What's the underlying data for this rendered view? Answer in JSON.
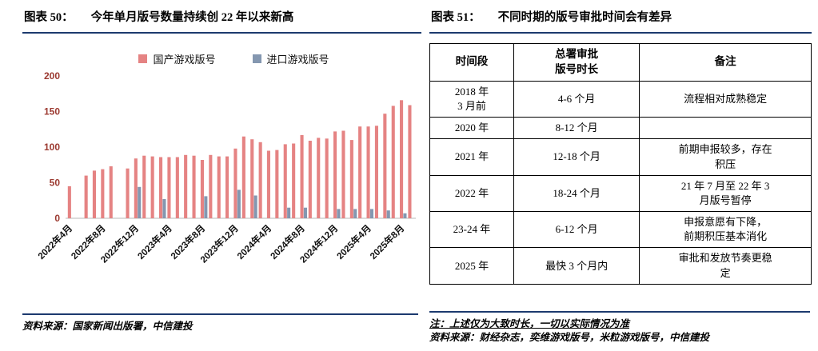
{
  "theme": {
    "rule_color": "#1c3a6e",
    "domestic_bar_color": "#e58383",
    "imported_bar_color": "#8497b0",
    "y_axis_label_color": "#9c3a31",
    "table_border_color": "#000000"
  },
  "left_panel": {
    "title_label": "图表 50：",
    "source": "资料来源：国家新闻出版署，中信建投"
  },
  "right_panel": {
    "title_label": "图表 51：",
    "note": "注：上述仅为大致时长，一切以实际情况为准",
    "source": "资料来源：财经杂志，奕维游戏版号，米粒游戏版号，中信建投"
  },
  "chart_data": [
    {
      "type": "bar",
      "title": "今年单月版号数量持续创 22 年以来新高",
      "x": [
        "2022年4月",
        "2022年5月",
        "2022年6月",
        "2022年7月",
        "2022年8月",
        "2022年9月",
        "2022年10月",
        "2022年11月",
        "2022年12月",
        "2023年1月",
        "2023年2月",
        "2023年3月",
        "2023年4月",
        "2023年5月",
        "2023年6月",
        "2023年7月",
        "2023年8月",
        "2023年9月",
        "2023年10月",
        "2023年11月",
        "2023年12月",
        "2024年1月",
        "2024年2月",
        "2024年3月",
        "2024年4月",
        "2024年5月",
        "2024年6月",
        "2024年7月",
        "2024年8月",
        "2024年9月",
        "2024年10月",
        "2024年11月",
        "2024年12月",
        "2025年1月",
        "2025年2月",
        "2025年3月",
        "2025年4月",
        "2025年5月",
        "2025年6月",
        "2025年7月",
        "2025年8月",
        "2025年9月"
      ],
      "series": [
        {
          "name": "国产游戏版号",
          "color": "#e58383",
          "values": [
            45,
            0,
            60,
            67,
            69,
            73,
            0,
            70,
            84,
            88,
            87,
            86,
            86,
            86,
            89,
            88,
            82,
            89,
            87,
            87,
            98,
            115,
            111,
            107,
            95,
            96,
            104,
            105,
            117,
            109,
            113,
            112,
            122,
            123,
            110,
            129,
            129,
            130,
            147,
            158,
            166,
            159
          ]
        },
        {
          "name": "进口游戏版号",
          "color": "#8497b0",
          "values": [
            0,
            0,
            0,
            0,
            0,
            0,
            0,
            0,
            44,
            0,
            0,
            27,
            0,
            0,
            0,
            0,
            31,
            0,
            0,
            0,
            40,
            0,
            32,
            0,
            0,
            0,
            15,
            0,
            15,
            0,
            0,
            0,
            13,
            0,
            13,
            0,
            13,
            0,
            11,
            0,
            7,
            0
          ]
        }
      ],
      "ylim": [
        0,
        200
      ],
      "yticks": [
        0,
        50,
        100,
        150,
        200
      ],
      "xtick_interval": 4,
      "xtick_labels_shown": [
        "2022年4月",
        "2022年8月",
        "2022年12月",
        "2023年4月",
        "2023年8月",
        "2023年12月",
        "2024年4月",
        "2024年8月",
        "2024年12月",
        "2025年4月",
        "2025年8月"
      ],
      "grid": false,
      "legend_position": "top"
    },
    {
      "type": "table",
      "title": "不同时期的版号审批时间会有差异",
      "headers": [
        "时间段",
        "总署审批\n版号时长",
        "备注"
      ],
      "rows": [
        [
          "2018 年\n3 月前",
          "4-6 个月",
          "流程相对成熟稳定"
        ],
        [
          "2020 年",
          "8-12 个月",
          ""
        ],
        [
          "2021 年",
          "12-18 个月",
          "前期申报较多，存在\n积压"
        ],
        [
          "2022 年",
          "18-24 个月",
          "21 年 7 月至 22 年 3\n月版号暂停"
        ],
        [
          "23-24 年",
          "6-12 个月",
          "申报意愿有下降，\n前期积压基本消化"
        ],
        [
          "2025 年",
          "最快 3 个月内",
          "审批和发放节奏更稳\n定"
        ]
      ]
    }
  ]
}
